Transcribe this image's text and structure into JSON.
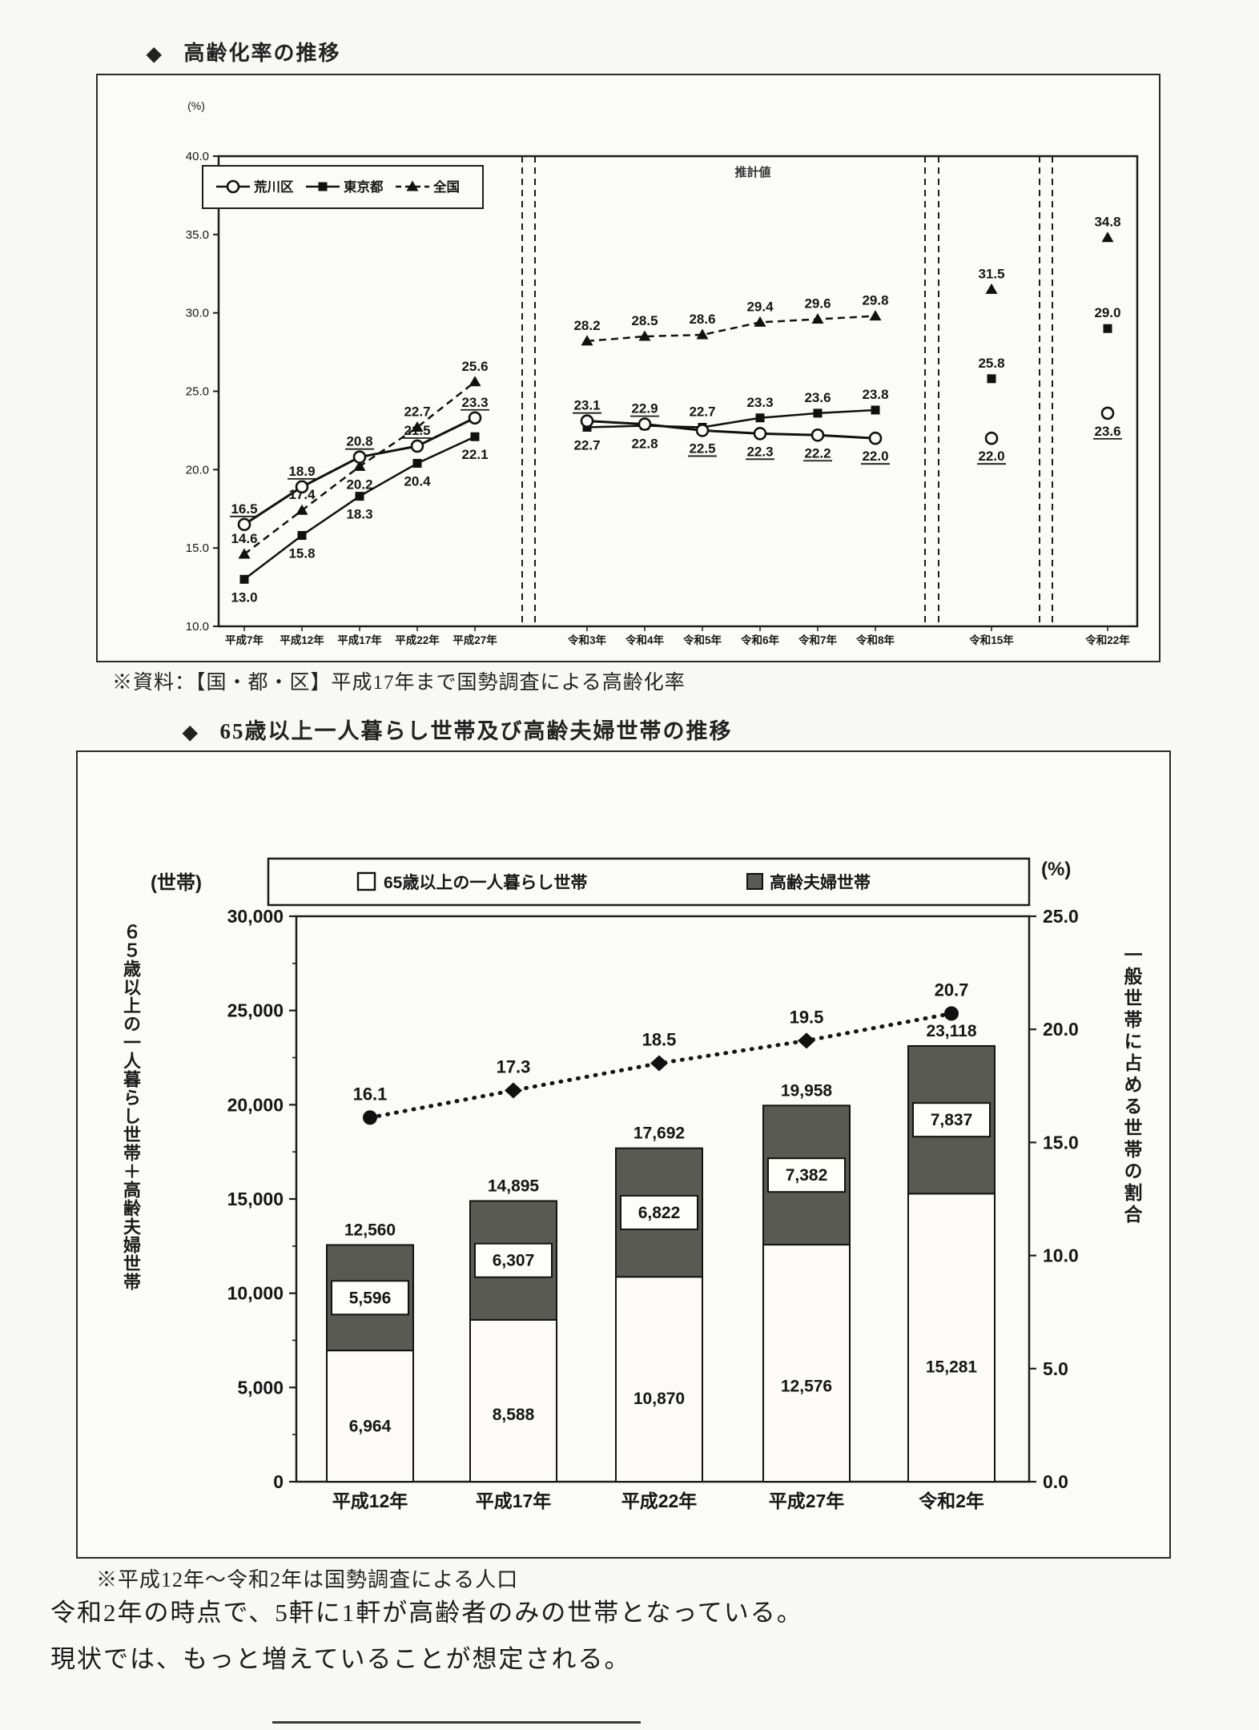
{
  "page": {
    "section1_title": "高齢化率の推移",
    "section1_bullet": "◆",
    "section1_note": "※資料：【国・都・区】平成17年まで国勢調査による高齢化率",
    "section2_title": "65歳以上一人暮らし世帯及び高齢夫婦世帯の推移",
    "section2_bullet": "◆",
    "section2_note": "※平成12年～令和2年は国勢調査による人口",
    "footer_line1": "令和2年の時点で、5軒に1軒が高齢者のみの世帯となっている。",
    "footer_line2": "現状では、もっと増えていることが想定される。"
  },
  "chart_data": [
    {
      "type": "line",
      "title": "高齢化率の推移",
      "unit_label": "(%)",
      "annotation": "推計値",
      "ylim": [
        10.0,
        40.0
      ],
      "ytick_labels": [
        "40.0",
        "35.0",
        "30.0",
        "25.0",
        "20.0",
        "15.0",
        "10.0"
      ],
      "grid": false,
      "legend_position": "top-left",
      "categories": [
        "平成7年",
        "平成12年",
        "平成17年",
        "平成22年",
        "平成27年",
        "令和3年",
        "令和4年",
        "令和5年",
        "令和6年",
        "令和7年",
        "令和8年",
        "令和15年",
        "令和22年"
      ],
      "series": [
        {
          "name": "全国",
          "marker": "triangle-filled",
          "line": "dashed",
          "values": [
            14.6,
            17.4,
            20.2,
            22.7,
            25.6,
            28.2,
            28.5,
            28.6,
            29.4,
            29.6,
            29.8,
            31.5,
            34.8
          ],
          "label_pos": [
            "above",
            "above",
            "below",
            "above",
            "above",
            "above",
            "above",
            "above",
            "above",
            "above",
            "above",
            "above",
            "above"
          ],
          "underline_labels": false
        },
        {
          "name": "東京都",
          "marker": "square-filled",
          "line": "solid",
          "values": [
            13.0,
            15.8,
            18.3,
            20.4,
            22.1,
            22.7,
            22.8,
            22.7,
            23.3,
            23.6,
            23.8,
            25.8,
            29.0
          ],
          "label_pos": [
            "below",
            "below",
            "below",
            "below",
            "below",
            "below",
            "below",
            "above",
            "above",
            "above",
            "above",
            "above",
            "above"
          ],
          "underline_labels": false
        },
        {
          "name": "荒川区",
          "marker": "circle-open",
          "line": "solid",
          "values": [
            16.5,
            18.9,
            20.8,
            21.5,
            23.3,
            23.1,
            22.9,
            22.5,
            22.3,
            22.2,
            22.0,
            22.0,
            23.6
          ],
          "label_pos": [
            "above",
            "above",
            "above",
            "above",
            "above",
            "above",
            "above",
            "below",
            "below",
            "below",
            "below",
            "below",
            "below"
          ],
          "underline_labels": true
        }
      ],
      "legend_order": [
        "荒川区",
        "東京都",
        "全国"
      ]
    },
    {
      "type": "bar",
      "title": "65歳以上一人暮らし世帯及び高齢夫婦世帯の推移",
      "left_axis_unit": "(世帯)",
      "right_axis_unit": "(%)",
      "left_vertical_label": "６５歳以上の一人暮らし世帯＋高齢夫婦世帯",
      "right_vertical_label": "一般世帯に占める世帯の割合",
      "legend": [
        "65歳以上の一人暮らし世帯",
        "高齢夫婦世帯"
      ],
      "categories": [
        "平成12年",
        "平成17年",
        "平成22年",
        "平成27年",
        "令和2年"
      ],
      "left_ylim": [
        0,
        30000
      ],
      "left_ytick_labels": [
        "30,000",
        "25,000",
        "20,000",
        "15,000",
        "10,000",
        "5,000",
        "0"
      ],
      "right_ylim": [
        0,
        25
      ],
      "right_ytick_labels": [
        "25.0",
        "20.0",
        "15.0",
        "10.0",
        "5.0",
        "0.0"
      ],
      "series": [
        {
          "name": "65歳以上の一人暮らし世帯",
          "role": "bar-bottom",
          "values": [
            6964,
            8588,
            10870,
            12576,
            15281
          ]
        },
        {
          "name": "高齢夫婦世帯",
          "role": "bar-top",
          "values": [
            5596,
            6307,
            6822,
            7382,
            7837
          ]
        },
        {
          "name": "合計",
          "role": "bar-total",
          "values": [
            12560,
            14895,
            17692,
            19958,
            23118
          ]
        },
        {
          "name": "一般世帯に占める世帯の割合",
          "role": "line",
          "values": [
            16.1,
            17.3,
            18.5,
            19.5,
            20.7
          ]
        }
      ],
      "colors": {
        "bar_bottom": "#fcfbf7",
        "bar_top": "#5a5a54",
        "line": "#151515"
      }
    }
  ]
}
